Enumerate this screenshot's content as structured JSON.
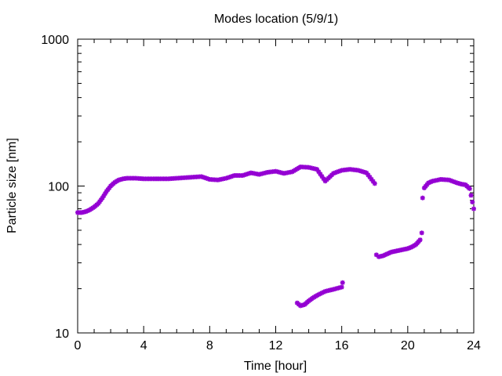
{
  "chart_data": {
    "type": "scatter",
    "title": "Modes location (5/9/1)",
    "xlabel": "Time [hour]",
    "ylabel": "Particle size [nm]",
    "xlim": [
      0,
      24
    ],
    "ylim": [
      10,
      1000
    ],
    "yscale": "log",
    "x_ticks": [
      0,
      4,
      8,
      12,
      16,
      20,
      24
    ],
    "y_ticks": [
      10,
      100,
      1000
    ],
    "grid": false,
    "legend": "none",
    "marker_color": "#9400d3",
    "series": [
      {
        "x": [
          0.0,
          0.25,
          0.5,
          0.75,
          1.0,
          1.25,
          1.5,
          1.75,
          2.0,
          2.25,
          2.5,
          2.75,
          3.0,
          3.5,
          4.0,
          4.5,
          5.0,
          5.5,
          6.0,
          6.5,
          7.0,
          7.5,
          8.0,
          8.5,
          9.0,
          9.5,
          10.0,
          10.5,
          11.0,
          11.5,
          12.0,
          12.5,
          13.0,
          13.5,
          14.0,
          14.5,
          15.0,
          15.5,
          16.0,
          16.5,
          17.0,
          17.5,
          18.0,
          20.9,
          21.0,
          21.25,
          21.5,
          22.0,
          22.5,
          23.0,
          23.25,
          23.5,
          23.75,
          24.0
        ],
        "y": [
          66,
          66,
          67,
          69,
          72,
          76,
          83,
          92,
          100,
          106,
          110,
          112,
          113,
          113,
          112,
          112,
          112,
          112,
          113,
          114,
          115,
          116,
          111,
          110,
          113,
          118,
          118,
          123,
          120,
          124,
          126,
          122,
          125,
          135,
          134,
          130,
          108,
          122,
          128,
          130,
          128,
          123,
          104,
          83,
          97,
          105,
          108,
          111,
          110,
          105,
          103,
          102,
          96,
          70
        ]
      },
      {
        "x": [
          13.3,
          13.5,
          13.75,
          14.0,
          14.25,
          14.5,
          15.0,
          15.5,
          16.0,
          16.05
        ],
        "y": [
          16,
          15.3,
          15.6,
          16.5,
          17.3,
          18,
          19.2,
          19.8,
          20.5,
          22
        ]
      },
      {
        "x": [
          18.1,
          18.25,
          18.5,
          18.75,
          19.0,
          19.25,
          19.5,
          19.75,
          20.0,
          20.25,
          20.5,
          20.75,
          20.85
        ],
        "y": [
          34,
          33,
          33.5,
          34.5,
          35.5,
          36,
          36.5,
          37,
          37.5,
          38.5,
          40,
          43,
          48
        ]
      }
    ]
  }
}
